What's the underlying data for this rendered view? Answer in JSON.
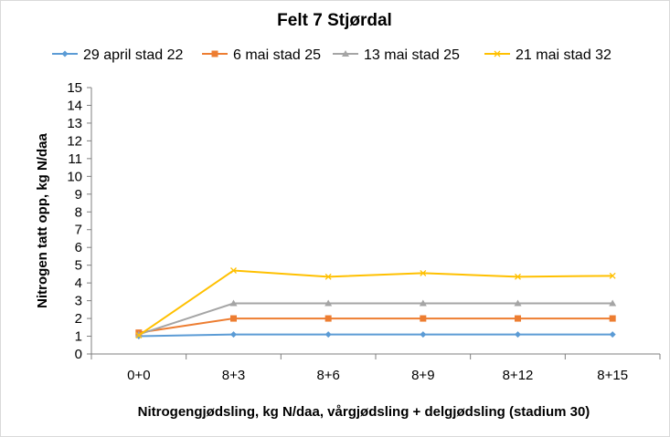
{
  "chart_data": {
    "type": "line",
    "title": "Felt 7 Stjørdal",
    "xlabel": "Nitrogengjødsling, kg N/daa, vårgjødsling + delgjødsling (stadium 30)",
    "ylabel": "Nitrogen tatt opp, kg N/daa",
    "categories": [
      "0+0",
      "8+3",
      "8+6",
      "8+9",
      "8+12",
      "8+15"
    ],
    "ylim": [
      0,
      15
    ],
    "yticks": [
      0,
      1,
      2,
      3,
      4,
      5,
      6,
      7,
      8,
      9,
      10,
      11,
      12,
      13,
      14,
      15
    ],
    "grid": false,
    "legend_position": "top",
    "series": [
      {
        "name": "29 april stad 22",
        "color": "#5B9BD5",
        "marker": "diamond",
        "values": [
          1.0,
          1.1,
          1.1,
          1.1,
          1.1,
          1.1
        ]
      },
      {
        "name": "6 mai stad 25",
        "color": "#ED7D31",
        "marker": "square",
        "values": [
          1.2,
          2.0,
          2.0,
          2.0,
          2.0,
          2.0
        ]
      },
      {
        "name": "13 mai stad 25",
        "color": "#A5A5A5",
        "marker": "triangle",
        "values": [
          1.1,
          2.85,
          2.85,
          2.85,
          2.85,
          2.85
        ]
      },
      {
        "name": "21 mai stad 32",
        "color": "#FFC000",
        "marker": "x",
        "values": [
          1.05,
          4.7,
          4.35,
          4.55,
          4.35,
          4.4
        ]
      }
    ]
  }
}
